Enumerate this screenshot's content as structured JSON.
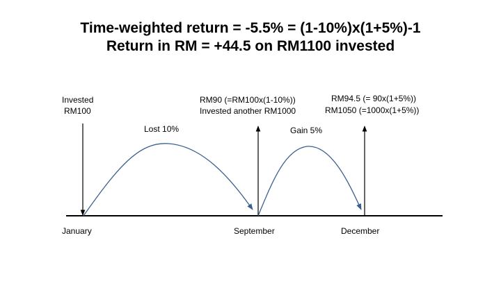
{
  "title": {
    "line1": "Time-weighted return = -5.5% = (1-10%)x(1+5%)-1",
    "line2": "Return in RM = +44.5 on RM1100 invested"
  },
  "annotations": {
    "invested_line1": "Invested",
    "invested_line2": "RM100",
    "lost": "Lost 10%",
    "september_line1": "RM90 (=RM100x(1-10%))",
    "september_line2": "Invested another RM1000",
    "gain": "Gain 5%",
    "december_line1": "RM94.5 (= 90x(1+5%))",
    "december_line2": "RM1050 (=1000x(1+5%))"
  },
  "timeline": {
    "labels": [
      "January",
      "September",
      "December"
    ]
  },
  "colors": {
    "curve": "#3a5f8f",
    "line": "#000000",
    "text": "#000000"
  }
}
